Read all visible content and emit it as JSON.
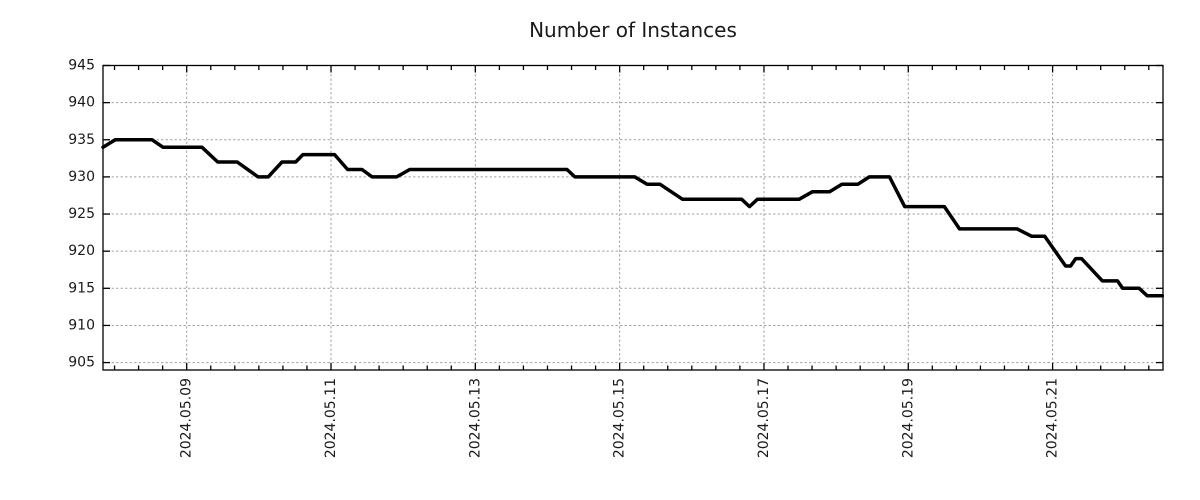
{
  "chart_data": {
    "type": "line",
    "title": "Number of Instances",
    "xlabel": "",
    "ylabel": "",
    "grid": true,
    "legend": false,
    "background_color": "#ffffff",
    "line_color": "#000000",
    "grid_color": "#9e9e9e",
    "text_color": "#1a1a1a",
    "axis_color": "#000000",
    "xlim_days": [
      7.84,
      22.53
    ],
    "ylim": [
      904,
      945
    ],
    "y_ticks": [
      905,
      910,
      915,
      920,
      925,
      930,
      935,
      940,
      945
    ],
    "x_ticks": [
      {
        "day": 9,
        "label": "2024.05.09"
      },
      {
        "day": 11,
        "label": "2024.05.11"
      },
      {
        "day": 13,
        "label": "2024.05.13"
      },
      {
        "day": 15,
        "label": "2024.05.15"
      },
      {
        "day": 17,
        "label": "2024.05.17"
      },
      {
        "day": 19,
        "label": "2024.05.19"
      },
      {
        "day": 21,
        "label": "2024.05.21"
      }
    ],
    "x_minor_tick_interval_days": 0.33333,
    "series": [
      {
        "name": "instances",
        "points": [
          [
            7.84,
            934
          ],
          [
            8.01,
            935
          ],
          [
            8.52,
            935
          ],
          [
            8.67,
            934
          ],
          [
            9.21,
            934
          ],
          [
            9.43,
            932
          ],
          [
            9.7,
            932
          ],
          [
            9.99,
            930
          ],
          [
            10.13,
            930
          ],
          [
            10.32,
            932
          ],
          [
            10.51,
            932
          ],
          [
            10.61,
            933
          ],
          [
            11.05,
            933
          ],
          [
            11.23,
            931
          ],
          [
            11.43,
            931
          ],
          [
            11.57,
            930
          ],
          [
            11.91,
            930
          ],
          [
            12.09,
            931
          ],
          [
            14.27,
            931
          ],
          [
            14.38,
            930
          ],
          [
            15.21,
            930
          ],
          [
            15.38,
            929
          ],
          [
            15.56,
            929
          ],
          [
            15.87,
            927
          ],
          [
            16.69,
            927
          ],
          [
            16.8,
            926
          ],
          [
            16.91,
            927
          ],
          [
            17.49,
            927
          ],
          [
            17.67,
            928
          ],
          [
            17.91,
            928
          ],
          [
            18.08,
            929
          ],
          [
            18.3,
            929
          ],
          [
            18.46,
            930
          ],
          [
            18.74,
            930
          ],
          [
            18.95,
            926
          ],
          [
            19.5,
            926
          ],
          [
            19.71,
            923
          ],
          [
            20.51,
            923
          ],
          [
            20.71,
            922
          ],
          [
            20.89,
            922
          ],
          [
            21.18,
            918
          ],
          [
            21.25,
            918
          ],
          [
            21.32,
            919
          ],
          [
            21.4,
            919
          ],
          [
            21.69,
            916
          ],
          [
            21.9,
            916
          ],
          [
            21.97,
            915
          ],
          [
            22.2,
            915
          ],
          [
            22.31,
            914
          ],
          [
            22.52,
            914
          ]
        ]
      }
    ]
  }
}
